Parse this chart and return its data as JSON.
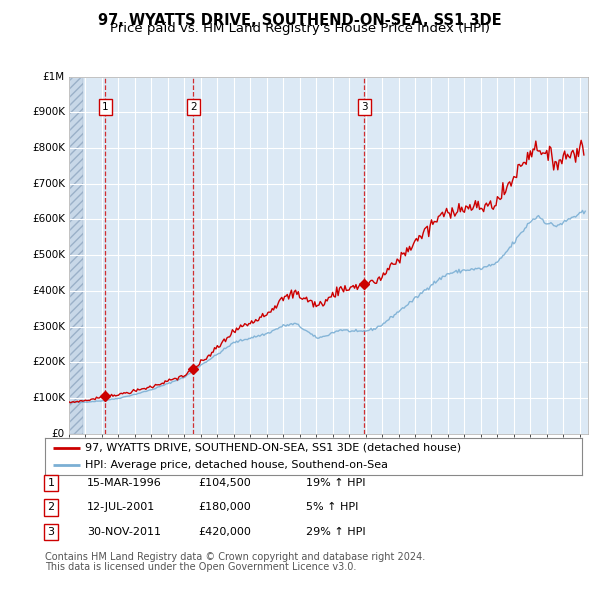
{
  "title": "97, WYATTS DRIVE, SOUTHEND-ON-SEA, SS1 3DE",
  "subtitle": "Price paid vs. HM Land Registry's House Price Index (HPI)",
  "ylim": [
    0,
    1000000
  ],
  "yticks": [
    0,
    100000,
    200000,
    300000,
    400000,
    500000,
    600000,
    700000,
    800000,
    900000,
    1000000
  ],
  "ytick_labels": [
    "£0",
    "£100K",
    "£200K",
    "£300K",
    "£400K",
    "£500K",
    "£600K",
    "£700K",
    "£800K",
    "£900K",
    "£1M"
  ],
  "xlim_start": 1994.0,
  "xlim_end": 2025.5,
  "plot_bg_color": "#dce9f5",
  "hatch_bg_color": "#c8d8e8",
  "grid_color": "#ffffff",
  "red_line_color": "#cc0000",
  "blue_line_color": "#7bafd4",
  "vline_color": "#cc0000",
  "transactions": [
    {
      "id": 1,
      "date_str": "15-MAR-1996",
      "year": 1996.21,
      "price": 104500,
      "pct": "19%",
      "dir": "↑"
    },
    {
      "id": 2,
      "date_str": "12-JUL-2001",
      "year": 2001.53,
      "price": 180000,
      "pct": "5%",
      "dir": "↑"
    },
    {
      "id": 3,
      "date_str": "30-NOV-2011",
      "year": 2011.92,
      "price": 420000,
      "pct": "29%",
      "dir": "↑"
    }
  ],
  "legend_line1": "97, WYATTS DRIVE, SOUTHEND-ON-SEA, SS1 3DE (detached house)",
  "legend_line2": "HPI: Average price, detached house, Southend-on-Sea",
  "footer_line1": "Contains HM Land Registry data © Crown copyright and database right 2024.",
  "footer_line2": "This data is licensed under the Open Government Licence v3.0.",
  "title_fontsize": 10.5,
  "subtitle_fontsize": 9.5,
  "tick_fontsize": 7.5,
  "legend_fontsize": 8,
  "table_fontsize": 8,
  "footer_fontsize": 7
}
